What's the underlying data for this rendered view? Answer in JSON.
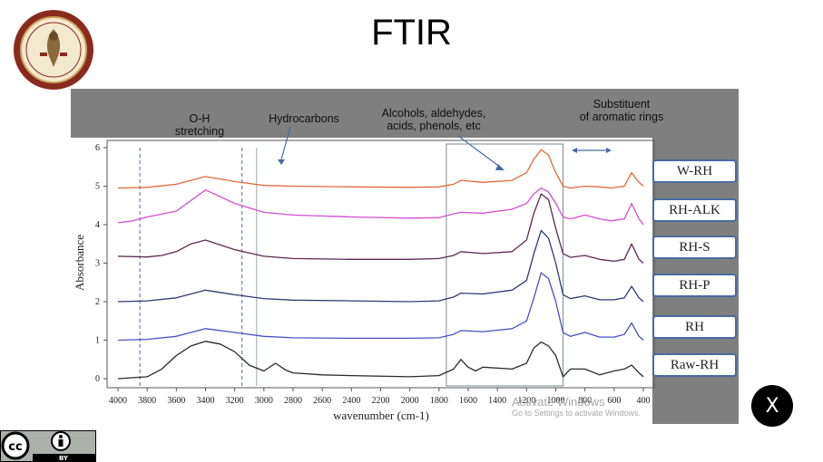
{
  "slide": {
    "title": "FTIR"
  },
  "annotations": {
    "oh_line1": "O-H",
    "oh_line2": "stretching",
    "hydrocarbons": "Hydrocarbons",
    "alcohols_line1": "Alcohols, aldehydes,",
    "alcohols_line2": "acids, phenols, etc",
    "substituent_line1": "Substituent",
    "substituent_line2": "of aromatic rings"
  },
  "legend": [
    "W-RH",
    "RH-ALK",
    "RH-S",
    "RH-P",
    "RH",
    "Raw-RH"
  ],
  "watermark": {
    "line1": "Activate Windows",
    "line2": "Go to Settings to activate Windows."
  },
  "close_button": {
    "label": "X"
  },
  "license": {
    "by": "BY"
  },
  "colors": {
    "figure_background": "#7f7f7f",
    "w_rh": "#e06a3a",
    "rh_alk": "#d24fd2",
    "rh_s": "#5a2a50",
    "rh_p": "#2e3a70",
    "rh": "#4a50c0",
    "raw_rh": "#2a2a2a",
    "guide_line": "#4a6aa0"
  },
  "chart_data": {
    "type": "line",
    "xlabel": "wavenumber (cm-1)",
    "ylabel": "Absorbance",
    "xlim": [
      4000,
      400
    ],
    "ylim": [
      0,
      6
    ],
    "x_ticks": [
      "4000",
      "3800",
      "3600",
      "3400",
      "3200",
      "3000",
      "2800",
      "2600",
      "2400",
      "2200",
      "2000",
      "1800",
      "1600",
      "1400",
      "1200",
      "1000",
      "800",
      "600",
      "400"
    ],
    "y_ticks": [
      "0",
      "1",
      "2",
      "3",
      "4",
      "5",
      "6"
    ],
    "guide_lines": [
      3850,
      3150,
      3050
    ],
    "highlight_region": [
      1750,
      950
    ],
    "series": [
      {
        "name": "W-RH",
        "x": [
          4000,
          3800,
          3600,
          3400,
          3200,
          3000,
          2800,
          2400,
          2000,
          1800,
          1700,
          1650,
          1500,
          1300,
          1200,
          1150,
          1100,
          1050,
          1000,
          950,
          900,
          800,
          700,
          620,
          530,
          480,
          430,
          400
        ],
        "values": [
          4.95,
          4.97,
          5.05,
          5.25,
          5.12,
          5.02,
          5.0,
          4.98,
          4.97,
          4.98,
          5.05,
          5.15,
          5.1,
          5.15,
          5.35,
          5.7,
          5.95,
          5.8,
          5.35,
          5.0,
          4.95,
          5.0,
          4.98,
          4.95,
          5.0,
          5.35,
          5.1,
          5.0
        ]
      },
      {
        "name": "RH-ALK",
        "x": [
          4000,
          3900,
          3800,
          3600,
          3400,
          3200,
          3000,
          2800,
          2400,
          2000,
          1800,
          1700,
          1650,
          1500,
          1300,
          1200,
          1150,
          1100,
          1050,
          1000,
          950,
          900,
          800,
          700,
          620,
          530,
          480,
          430,
          400
        ],
        "values": [
          4.05,
          4.1,
          4.2,
          4.35,
          4.9,
          4.55,
          4.32,
          4.25,
          4.2,
          4.17,
          4.18,
          4.28,
          4.32,
          4.3,
          4.4,
          4.55,
          4.8,
          4.95,
          4.85,
          4.55,
          4.2,
          4.15,
          4.25,
          4.15,
          4.1,
          4.15,
          4.55,
          4.15,
          4.0
        ]
      },
      {
        "name": "RH-S",
        "x": [
          4000,
          3800,
          3700,
          3600,
          3500,
          3400,
          3200,
          3000,
          2800,
          2400,
          2000,
          1800,
          1700,
          1650,
          1500,
          1300,
          1200,
          1150,
          1100,
          1050,
          1000,
          950,
          900,
          800,
          700,
          600,
          530,
          480,
          430,
          400
        ],
        "values": [
          3.18,
          3.16,
          3.2,
          3.3,
          3.5,
          3.6,
          3.35,
          3.18,
          3.12,
          3.1,
          3.1,
          3.12,
          3.2,
          3.3,
          3.25,
          3.3,
          3.6,
          4.3,
          4.8,
          4.65,
          3.9,
          3.25,
          3.15,
          3.2,
          3.1,
          3.05,
          3.1,
          3.5,
          3.1,
          3.0
        ]
      },
      {
        "name": "RH-P",
        "x": [
          4000,
          3800,
          3600,
          3400,
          3200,
          3000,
          2800,
          2400,
          2000,
          1800,
          1700,
          1650,
          1500,
          1300,
          1200,
          1150,
          1100,
          1050,
          1000,
          950,
          900,
          800,
          700,
          600,
          530,
          480,
          430,
          400
        ],
        "values": [
          2.0,
          2.02,
          2.1,
          2.3,
          2.18,
          2.08,
          2.04,
          2.02,
          2.0,
          2.02,
          2.12,
          2.22,
          2.2,
          2.3,
          2.55,
          3.25,
          3.85,
          3.65,
          3.0,
          2.18,
          2.08,
          2.15,
          2.05,
          2.05,
          2.1,
          2.4,
          2.1,
          2.0
        ]
      },
      {
        "name": "RH",
        "x": [
          4000,
          3800,
          3600,
          3400,
          3200,
          3000,
          2800,
          2400,
          2000,
          1800,
          1700,
          1650,
          1500,
          1300,
          1200,
          1150,
          1100,
          1050,
          1000,
          950,
          900,
          800,
          700,
          600,
          530,
          480,
          430,
          400
        ],
        "values": [
          1.0,
          1.02,
          1.1,
          1.3,
          1.2,
          1.1,
          1.06,
          1.05,
          1.05,
          1.06,
          1.15,
          1.25,
          1.22,
          1.3,
          1.5,
          2.1,
          2.75,
          2.6,
          2.0,
          1.2,
          1.1,
          1.2,
          1.08,
          1.08,
          1.15,
          1.45,
          1.1,
          1.0
        ]
      },
      {
        "name": "Raw-RH",
        "x": [
          4000,
          3800,
          3700,
          3600,
          3500,
          3400,
          3300,
          3200,
          3100,
          3000,
          2920,
          2850,
          2800,
          2600,
          2400,
          2000,
          1800,
          1700,
          1650,
          1600,
          1550,
          1500,
          1300,
          1200,
          1150,
          1100,
          1050,
          1000,
          950,
          900,
          800,
          700,
          600,
          530,
          480,
          430,
          400
        ],
        "values": [
          0.0,
          0.05,
          0.25,
          0.6,
          0.85,
          0.97,
          0.9,
          0.7,
          0.35,
          0.2,
          0.4,
          0.22,
          0.15,
          0.1,
          0.08,
          0.05,
          0.08,
          0.25,
          0.5,
          0.3,
          0.2,
          0.3,
          0.25,
          0.4,
          0.8,
          0.95,
          0.85,
          0.6,
          0.05,
          0.25,
          0.25,
          0.1,
          0.2,
          0.25,
          0.35,
          0.15,
          0.05
        ]
      }
    ]
  }
}
